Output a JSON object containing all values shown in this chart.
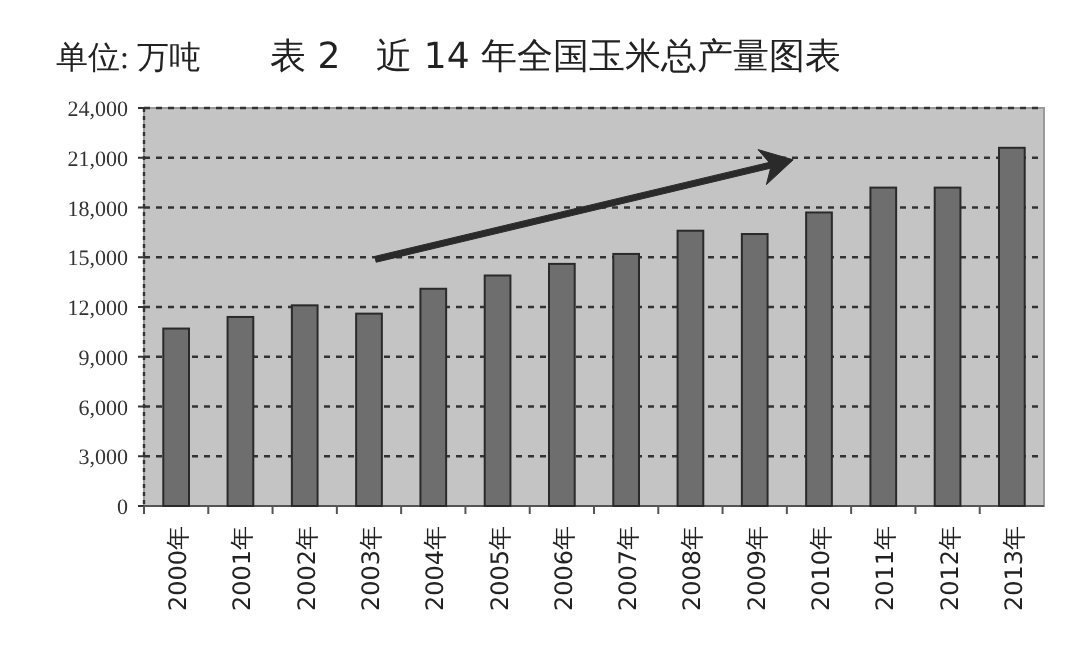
{
  "chart_data": {
    "type": "bar",
    "title": "表 2　近 14 年全国玉米总产量图表",
    "ylabel": "单位: 万吨",
    "categories": [
      "2000年",
      "2001年",
      "2002年",
      "2003年",
      "2004年",
      "2005年",
      "2006年",
      "2007年",
      "2008年",
      "2009年",
      "2010年",
      "2011年",
      "2012年",
      "2013年"
    ],
    "values": [
      10700,
      11400,
      12100,
      11600,
      13100,
      13900,
      14600,
      15200,
      16600,
      16400,
      17700,
      19200,
      19200,
      21600
    ],
    "color": "#6e6e6e",
    "ylim": [
      0,
      24000
    ],
    "yticks": [
      {
        "value": 0,
        "label": "0"
      },
      {
        "value": 3000,
        "label": "3,000"
      },
      {
        "value": 6000,
        "label": "6,000"
      },
      {
        "value": 9000,
        "label": "9,000"
      },
      {
        "value": 12000,
        "label": "12,000"
      },
      {
        "value": 15000,
        "label": "15,000"
      },
      {
        "value": 18000,
        "label": "18,000"
      },
      {
        "value": 21000,
        "label": "21,000"
      },
      {
        "value": 24000,
        "label": "24,000"
      }
    ],
    "grid": "y"
  }
}
